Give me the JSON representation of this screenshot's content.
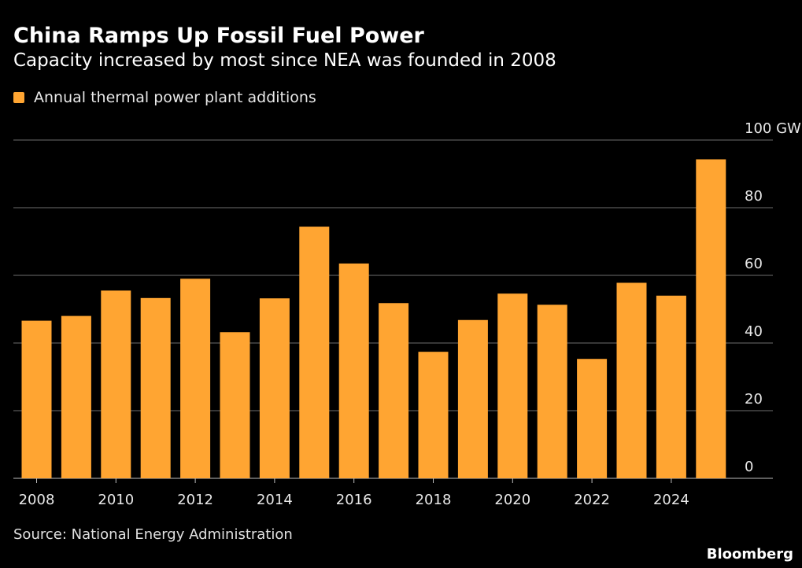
{
  "header": {
    "title": "China Ramps Up Fossil Fuel Power",
    "subtitle": "Capacity increased by most since NEA was founded in 2008"
  },
  "footer": {
    "source": "Source: National Energy Administration",
    "brand": "Bloomberg"
  },
  "colors": {
    "bar": "#ffa532",
    "background": "#000000",
    "grid": "#6e6e6e",
    "text": "#ffffff"
  },
  "chart_data": {
    "type": "bar",
    "x": [
      2008,
      2009,
      2010,
      2011,
      2012,
      2013,
      2014,
      2015,
      2016,
      2017,
      2018,
      2019,
      2020,
      2021,
      2022,
      2023,
      2024,
      2025
    ],
    "series": [
      {
        "name": "Annual thermal power plant additions",
        "values": [
          46.6,
          48,
          55.5,
          53.3,
          59,
          43.2,
          53.2,
          74.4,
          63.5,
          51.8,
          37.4,
          46.8,
          54.6,
          51.3,
          35.3,
          57.8,
          54,
          94.3
        ]
      }
    ],
    "x_tick_labels": [
      "2008",
      "2010",
      "2012",
      "2014",
      "2016",
      "2018",
      "2020",
      "2022",
      "2024"
    ],
    "y_ticks": [
      0,
      20,
      40,
      60,
      80,
      100
    ],
    "y_tick_labels": [
      "0",
      "20",
      "40",
      "60",
      "80",
      "100 GW"
    ],
    "ylim": [
      0,
      100
    ],
    "grid": "horizontal",
    "legend_position": "top-left",
    "y_axis_position": "right"
  }
}
